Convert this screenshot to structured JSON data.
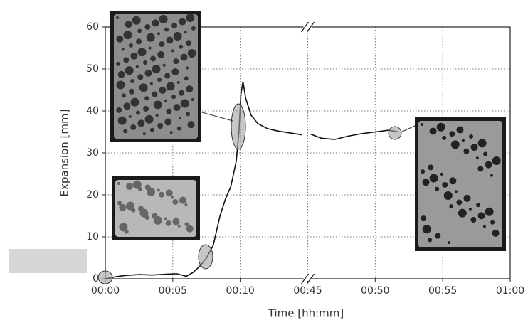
{
  "chart_data": {
    "type": "line",
    "x_label": "Time [hh:mm]",
    "y_label": "Expansion [mm]",
    "xlim": [
      0,
      60
    ],
    "x_break": [
      15,
      45
    ],
    "xticks": [
      {
        "value": 0,
        "label": "00:00"
      },
      {
        "value": 5,
        "label": "00:05"
      },
      {
        "value": 10,
        "label": "00:10"
      },
      {
        "value": 45,
        "label": "00:45"
      },
      {
        "value": 50,
        "label": "00:50"
      },
      {
        "value": 55,
        "label": "00:55"
      },
      {
        "value": 60,
        "label": "01:00"
      }
    ],
    "ylim": [
      0,
      60
    ],
    "yticks": [
      0,
      10,
      20,
      30,
      40,
      50,
      60
    ],
    "grid": true,
    "series": [
      {
        "color": "#111111",
        "x": [
          0,
          0.8,
          1.5,
          2.5,
          3.5,
          4.5,
          5.3,
          6.0,
          6.5,
          7.0,
          7.5,
          8.0,
          8.5,
          8.9,
          9.3,
          9.7,
          9.9,
          10.05,
          10.2,
          10.4,
          10.8,
          11.3,
          12.0,
          12.8,
          13.6,
          14.6,
          null,
          45.2,
          46.0,
          47.0,
          48.0,
          49.0,
          50.0,
          51.0,
          51.7
        ],
        "values": [
          0,
          0.5,
          0.8,
          1,
          0.9,
          1.1,
          1.2,
          0.6,
          1.5,
          3,
          5,
          8,
          15,
          19,
          22,
          28,
          35,
          44,
          47,
          43,
          39,
          37,
          35.8,
          35.2,
          34.8,
          34.3,
          null,
          34.5,
          33.5,
          33.2,
          34,
          34.6,
          35,
          35.4,
          35
        ]
      }
    ]
  }
}
